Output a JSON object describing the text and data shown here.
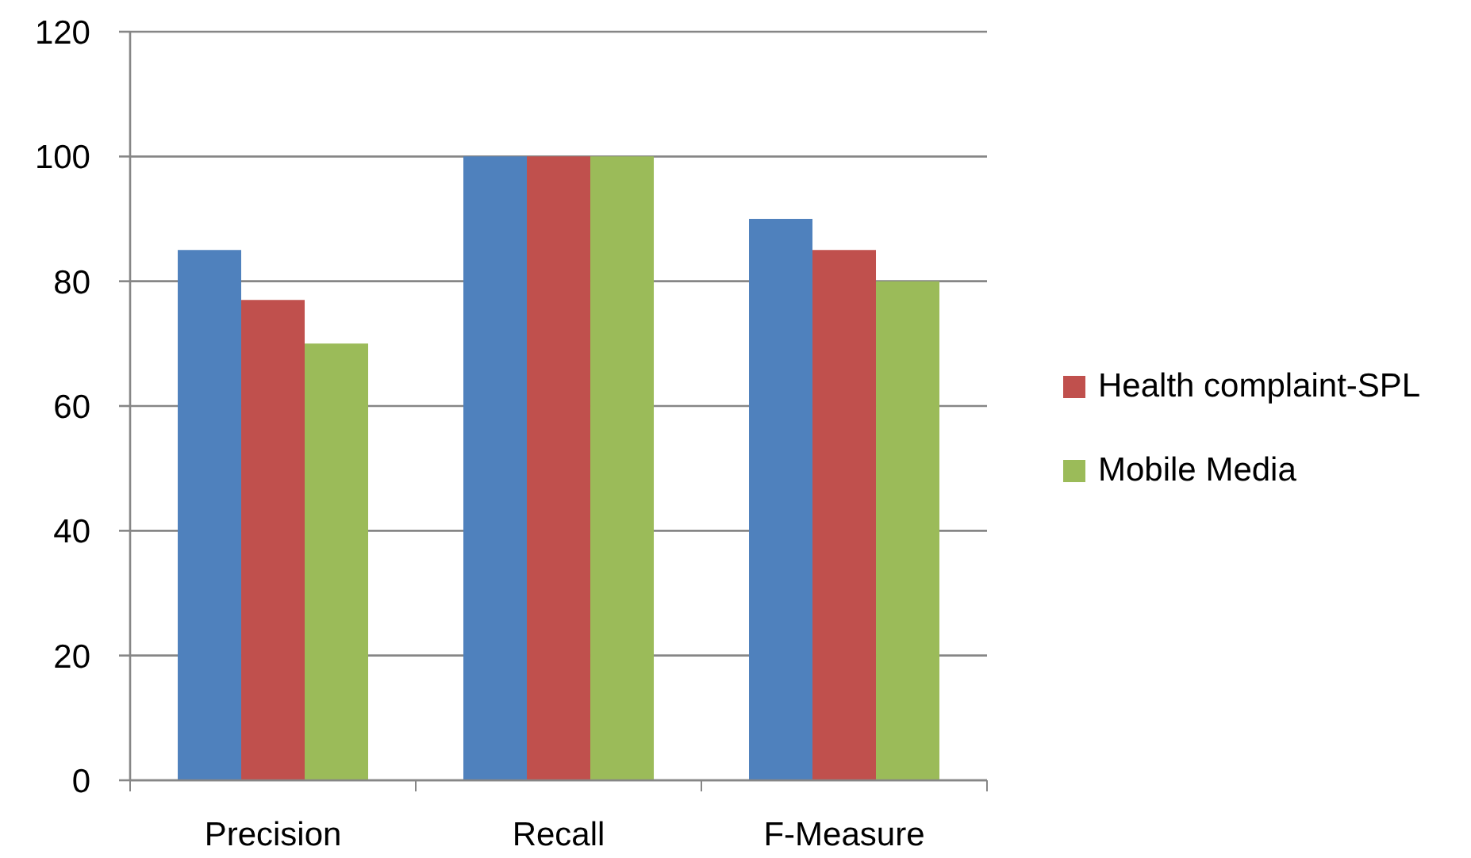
{
  "chart_data": {
    "type": "bar",
    "categories": [
      "Precision",
      "Recall",
      "F-Measure"
    ],
    "series": [
      {
        "color": "#4f81bd",
        "values": [
          85,
          100,
          90
        ]
      },
      {
        "name": "Health complaint-SPL",
        "color": "#c0504d",
        "values": [
          77,
          100,
          85
        ]
      },
      {
        "name": "Mobile Media",
        "color": "#9bbb59",
        "values": [
          70,
          100,
          80
        ]
      }
    ],
    "ylim": [
      0,
      120
    ],
    "yticks": [
      0,
      20,
      40,
      60,
      80,
      100,
      120
    ],
    "grid": "y",
    "legend": "right"
  }
}
